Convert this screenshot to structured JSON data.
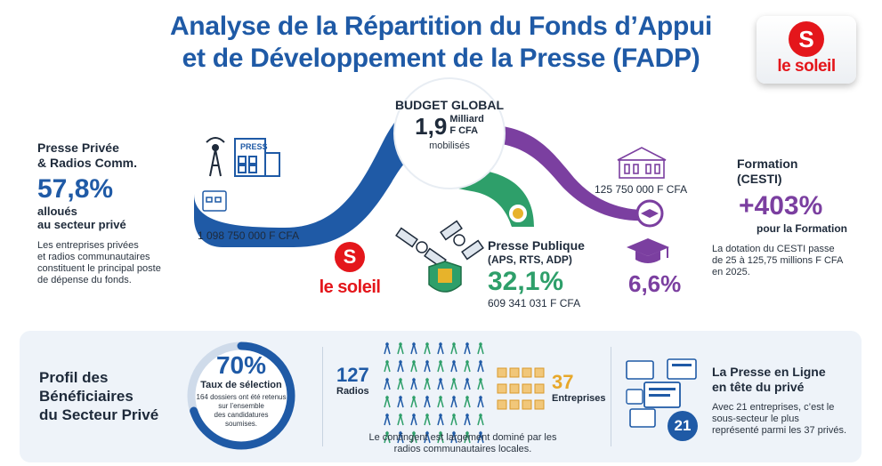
{
  "title": {
    "line1": "Analyse de la Répartition du Fonds d’Appui",
    "line2": "et de Développement de la Presse (FADP)"
  },
  "logo": {
    "mark": "S",
    "text": "le soleil"
  },
  "budget": {
    "label": "BUDGET GLOBAL",
    "amount": "1,9",
    "unit_line1": "Milliard",
    "unit_line2": "F CFA",
    "note": "mobilisés"
  },
  "private": {
    "heading_line1": "Presse Privée",
    "heading_line2": "& Radios Comm.",
    "percent": "57,8%",
    "sub_line1": "alloués",
    "sub_line2": "au secteur privé",
    "desc_line1": "Les entreprises privées",
    "desc_line2": "et radios communautaires",
    "desc_line3": "constituent le principal poste",
    "desc_line4": "de dépense du fonds.",
    "amount": "1 098 750 000 F CFA",
    "press_sign": "PRESS"
  },
  "public": {
    "heading": "Presse Publique",
    "sub": "(APS, RTS, ADP)",
    "percent": "32,1%",
    "amount": "609 341 031 F CFA"
  },
  "training": {
    "amount": "125 750 000 F CFA",
    "percent": "6,6%",
    "heading_line1": "Formation",
    "heading_line2": "(CESTI)",
    "growth": "+403%",
    "growth_sub": "pour la Formation",
    "desc_line1": "La dotation du CESTI passe",
    "desc_line2": "de 25 à 125,75 millions F CFA",
    "desc_line3": "en 2025."
  },
  "profile": {
    "heading_line1": "Profil des",
    "heading_line2": "Bénéficiaires",
    "heading_line3": "du Secteur Privé",
    "rate": "70%",
    "rate_fraction": 0.7,
    "rate_label": "Taux de sélection",
    "rate_note_line1": "164 dossiers ont été retenus",
    "rate_note_line2": "sur l’ensemble",
    "rate_note_line3": "des candidatures",
    "rate_note_line4": "soumises."
  },
  "contingent": {
    "radios_count": "127",
    "radios_label": "Radios",
    "enterprises_count": "37",
    "enterprises_label": "Entreprises",
    "note_line1": "Le contingent est largement dominé par les",
    "note_line2": "radios communautaires locales."
  },
  "online": {
    "heading_line1": "La Presse en Ligne",
    "heading_line2": "en tête du privé",
    "count": "21",
    "desc_line1": "Avec 21 entreprises, c’est le",
    "desc_line2": "sous-secteur le plus",
    "desc_line3": "représenté parmi les 37 privés."
  },
  "colors": {
    "blue": "#1f5aa6",
    "green": "#2e9f6a",
    "purple": "#7b3fa0",
    "red": "#e4161b"
  }
}
